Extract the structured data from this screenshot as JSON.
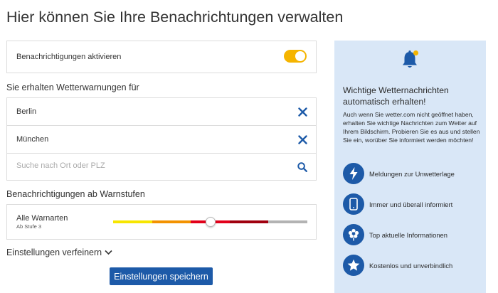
{
  "page": {
    "title": "Hier können Sie Ihre Benachrichtungen verwalten"
  },
  "notifications": {
    "activate_label": "Benachrichtigungen aktivieren",
    "enabled": true
  },
  "locations": {
    "heading": "Sie erhalten Wetterwarnungen für",
    "items": [
      {
        "name": "Berlin"
      },
      {
        "name": "München"
      }
    ],
    "search_placeholder": "Suche nach Ort oder PLZ"
  },
  "warning_levels": {
    "heading": "Benachrichtigungen ab Warnstufen",
    "label": "Alle Warnarten",
    "sublabel": "Ab Stufe 3",
    "level_fraction": 0.5,
    "colors": [
      "#f7e600",
      "#f39200",
      "#e2001a",
      "#a0000f",
      "#b3b3b3"
    ]
  },
  "refine": {
    "label": "Einstellungen verfeinern"
  },
  "save": {
    "label": "Einstellungen speichern"
  },
  "side_panel": {
    "heading": "Wichtige Wetternachrichten automatisch erhalten!",
    "body": "Auch wenn Sie wetter.com nicht geöffnet haben, erhalten Sie wichtige Nachrichten zum Wetter auf Ihrem Bildschirm. Probieren Sie es aus und stellen Sie ein, worüber Sie informiert werden möchten!",
    "features": [
      {
        "icon": "lightning-icon",
        "label": "Meldungen zur Unwetterlage"
      },
      {
        "icon": "smartphone-icon",
        "label": "Immer und überall informiert"
      },
      {
        "icon": "flower-icon",
        "label": "Top aktuelle Informationen"
      },
      {
        "icon": "star-icon",
        "label": "Kostenlos und unverbindlich"
      }
    ]
  },
  "colors": {
    "accent": "#f5b400",
    "primary": "#1d5aa8",
    "panel_bg": "#d9e7f7"
  }
}
